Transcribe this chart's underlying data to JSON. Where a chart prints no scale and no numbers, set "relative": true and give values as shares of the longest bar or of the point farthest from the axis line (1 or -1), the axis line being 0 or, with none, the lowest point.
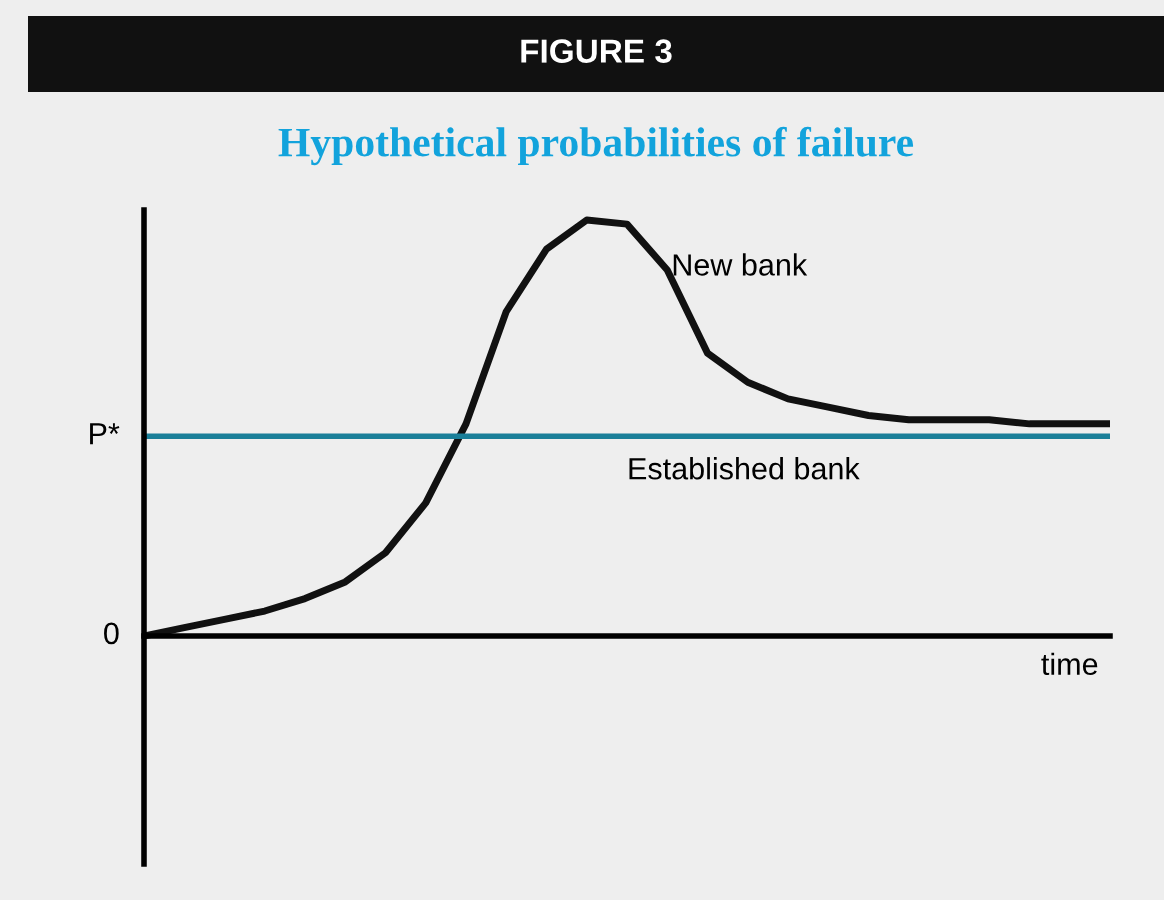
{
  "chart_data": {
    "type": "line",
    "title": "Hypothetical probabilities of failure",
    "subtitle": "FIGURE 3",
    "xlabel": "time",
    "relative": true,
    "legend": false,
    "marker": "none",
    "line_style": "solid",
    "categories": [
      null,
      null,
      null,
      null,
      null,
      null,
      null,
      null,
      null,
      null,
      null,
      null,
      null,
      null,
      null,
      null,
      null,
      null,
      null,
      null,
      null,
      null,
      null,
      null,
      null
    ],
    "series": [
      {
        "name": "New bank",
        "color": "#111111",
        "values": [
          0,
          0.02,
          0.04,
          0.06,
          0.09,
          0.13,
          0.2,
          0.32,
          0.51,
          0.78,
          0.93,
          1,
          0.99,
          0.88,
          0.68,
          0.61,
          0.57,
          0.55,
          0.53,
          0.52,
          0.52,
          0.52,
          0.51,
          0.51,
          0.51
        ]
      },
      {
        "name": "Established bank",
        "color": "#1a7f99",
        "values": [
          0.48,
          0.48,
          0.48,
          0.48,
          0.48,
          0.48,
          0.48,
          0.48,
          0.48,
          0.48,
          0.48,
          0.48,
          0.48,
          0.48,
          0.48,
          0.48,
          0.48,
          0.48,
          0.48,
          0.48,
          0.48,
          0.48,
          0.48,
          0.48,
          0.48
        ]
      }
    ],
    "annotations": [
      "0",
      "P*"
    ]
  }
}
